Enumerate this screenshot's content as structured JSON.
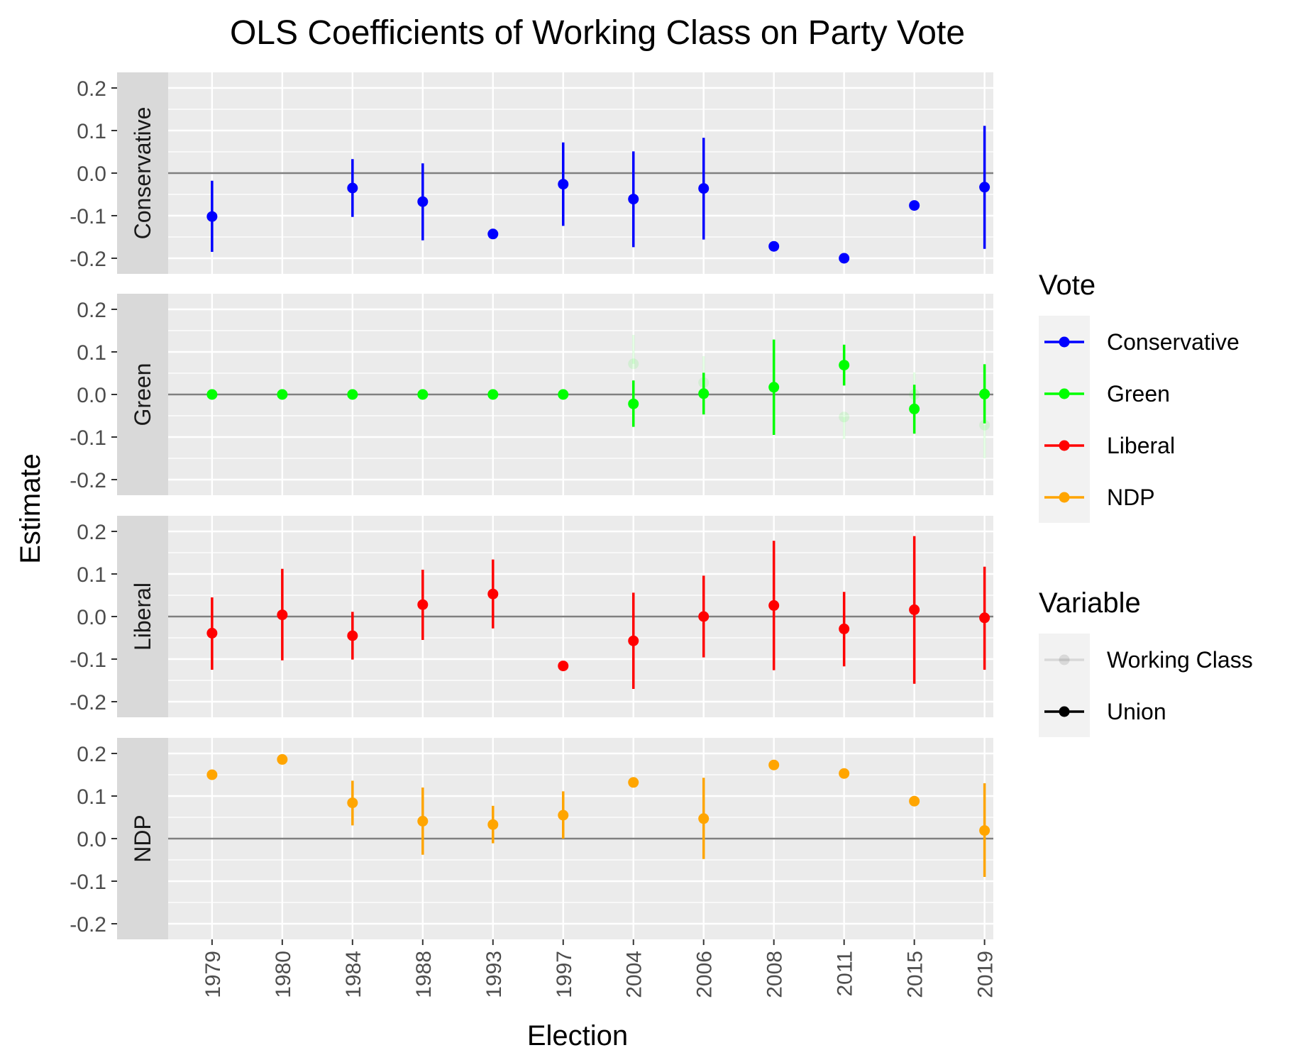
{
  "chart_data": {
    "type": "scatter",
    "title": "OLS Coefficients of Working Class on Party Vote",
    "xlabel": "Election",
    "ylabel": "Estimate",
    "ylim": [
      -0.2,
      0.2
    ],
    "yticks": [
      -0.2,
      -0.1,
      0.0,
      0.1,
      0.2
    ],
    "ytick_labels": [
      "-0.2",
      "-0.1",
      "0.0",
      "0.1",
      "0.2"
    ],
    "categories": [
      "1979",
      "1980",
      "1984",
      "1988",
      "1993",
      "1997",
      "2004",
      "2006",
      "2008",
      "2011",
      "2015",
      "2019"
    ],
    "grid": true,
    "legend_position": "right",
    "colors": {
      "Conservative": "#0000ff",
      "Green": "#00ff00",
      "Liberal": "#ff0000",
      "NDP": "#ffa500",
      "panel_bg": "#ebebeb",
      "strip_bg": "#d9d9d9",
      "grid": "#ffffff",
      "zero_line": "#7f7f7f"
    },
    "legend": {
      "vote_title": "Vote",
      "vote_items": [
        "Conservative",
        "Green",
        "Liberal",
        "NDP"
      ],
      "variable_title": "Variable",
      "variable_items": [
        "Working Class",
        "Union"
      ]
    },
    "panels": [
      {
        "name": "Conservative",
        "color": "#0000ff",
        "points": [
          {
            "x": "1979",
            "y": -0.102,
            "lo": -0.185,
            "hi": -0.018
          },
          {
            "x": "1984",
            "y": -0.035,
            "lo": -0.103,
            "hi": 0.033
          },
          {
            "x": "1988",
            "y": -0.067,
            "lo": -0.158,
            "hi": 0.023
          },
          {
            "x": "1993",
            "y": -0.143,
            "lo": null,
            "hi": null
          },
          {
            "x": "1997",
            "y": -0.026,
            "lo": -0.124,
            "hi": 0.072
          },
          {
            "x": "2004",
            "y": -0.061,
            "lo": -0.174,
            "hi": 0.051
          },
          {
            "x": "2006",
            "y": -0.036,
            "lo": -0.156,
            "hi": 0.083
          },
          {
            "x": "2008",
            "y": -0.172,
            "lo": null,
            "hi": null
          },
          {
            "x": "2011",
            "y": -0.2,
            "lo": null,
            "hi": null
          },
          {
            "x": "2015",
            "y": -0.076,
            "lo": null,
            "hi": null
          },
          {
            "x": "2019",
            "y": -0.033,
            "lo": -0.178,
            "hi": 0.111
          }
        ]
      },
      {
        "name": "Green",
        "color": "#00ff00",
        "faded_points": [
          {
            "x": "2004",
            "y": 0.072,
            "lo": null,
            "hi": 0.14
          },
          {
            "x": "2006",
            "y": 0.028,
            "lo": null,
            "hi": 0.09
          },
          {
            "x": "2011",
            "y": -0.053,
            "lo": -0.105,
            "hi": null
          },
          {
            "x": "2015",
            "y": 0.0,
            "lo": null,
            "hi": 0.052
          },
          {
            "x": "2019",
            "y": -0.072,
            "lo": -0.15,
            "hi": null
          }
        ],
        "points": [
          {
            "x": "1979",
            "y": 0.0,
            "lo": null,
            "hi": null
          },
          {
            "x": "1980",
            "y": 0.0,
            "lo": null,
            "hi": null
          },
          {
            "x": "1984",
            "y": 0.0,
            "lo": null,
            "hi": null
          },
          {
            "x": "1988",
            "y": 0.0,
            "lo": null,
            "hi": null
          },
          {
            "x": "1993",
            "y": 0.0,
            "lo": null,
            "hi": null
          },
          {
            "x": "1997",
            "y": 0.0,
            "lo": null,
            "hi": null
          },
          {
            "x": "2004",
            "y": -0.022,
            "lo": -0.076,
            "hi": 0.033
          },
          {
            "x": "2006",
            "y": 0.002,
            "lo": -0.047,
            "hi": 0.051
          },
          {
            "x": "2008",
            "y": 0.017,
            "lo": -0.095,
            "hi": 0.129
          },
          {
            "x": "2011",
            "y": 0.069,
            "lo": 0.021,
            "hi": 0.117
          },
          {
            "x": "2015",
            "y": -0.034,
            "lo": -0.092,
            "hi": 0.023
          },
          {
            "x": "2019",
            "y": 0.001,
            "lo": -0.068,
            "hi": 0.071
          }
        ]
      },
      {
        "name": "Liberal",
        "color": "#ff0000",
        "points": [
          {
            "x": "1979",
            "y": -0.039,
            "lo": -0.125,
            "hi": 0.045
          },
          {
            "x": "1980",
            "y": 0.004,
            "lo": -0.103,
            "hi": 0.112
          },
          {
            "x": "1984",
            "y": -0.045,
            "lo": -0.101,
            "hi": 0.011
          },
          {
            "x": "1988",
            "y": 0.028,
            "lo": -0.055,
            "hi": 0.11
          },
          {
            "x": "1993",
            "y": 0.053,
            "lo": -0.028,
            "hi": 0.134
          },
          {
            "x": "1997",
            "y": -0.116,
            "lo": null,
            "hi": null
          },
          {
            "x": "2004",
            "y": -0.057,
            "lo": -0.17,
            "hi": 0.056
          },
          {
            "x": "2006",
            "y": 0.0,
            "lo": -0.096,
            "hi": 0.096
          },
          {
            "x": "2008",
            "y": 0.026,
            "lo": -0.126,
            "hi": 0.178
          },
          {
            "x": "2011",
            "y": -0.029,
            "lo": -0.117,
            "hi": 0.058
          },
          {
            "x": "2015",
            "y": 0.016,
            "lo": -0.158,
            "hi": 0.189
          },
          {
            "x": "2019",
            "y": -0.003,
            "lo": -0.125,
            "hi": 0.117
          }
        ]
      },
      {
        "name": "NDP",
        "color": "#ffa500",
        "points": [
          {
            "x": "1979",
            "y": 0.15,
            "lo": null,
            "hi": null
          },
          {
            "x": "1980",
            "y": 0.186,
            "lo": null,
            "hi": null
          },
          {
            "x": "1984",
            "y": 0.084,
            "lo": 0.031,
            "hi": 0.136
          },
          {
            "x": "1988",
            "y": 0.041,
            "lo": -0.038,
            "hi": 0.12
          },
          {
            "x": "1993",
            "y": 0.033,
            "lo": -0.011,
            "hi": 0.077
          },
          {
            "x": "1997",
            "y": 0.055,
            "lo": 0.0,
            "hi": 0.111
          },
          {
            "x": "2004",
            "y": 0.132,
            "lo": null,
            "hi": null
          },
          {
            "x": "2006",
            "y": 0.047,
            "lo": -0.048,
            "hi": 0.143
          },
          {
            "x": "2008",
            "y": 0.173,
            "lo": null,
            "hi": null
          },
          {
            "x": "2011",
            "y": 0.153,
            "lo": null,
            "hi": null
          },
          {
            "x": "2015",
            "y": 0.088,
            "lo": null,
            "hi": null
          },
          {
            "x": "2019",
            "y": 0.019,
            "lo": -0.09,
            "hi": 0.13
          }
        ]
      }
    ]
  }
}
